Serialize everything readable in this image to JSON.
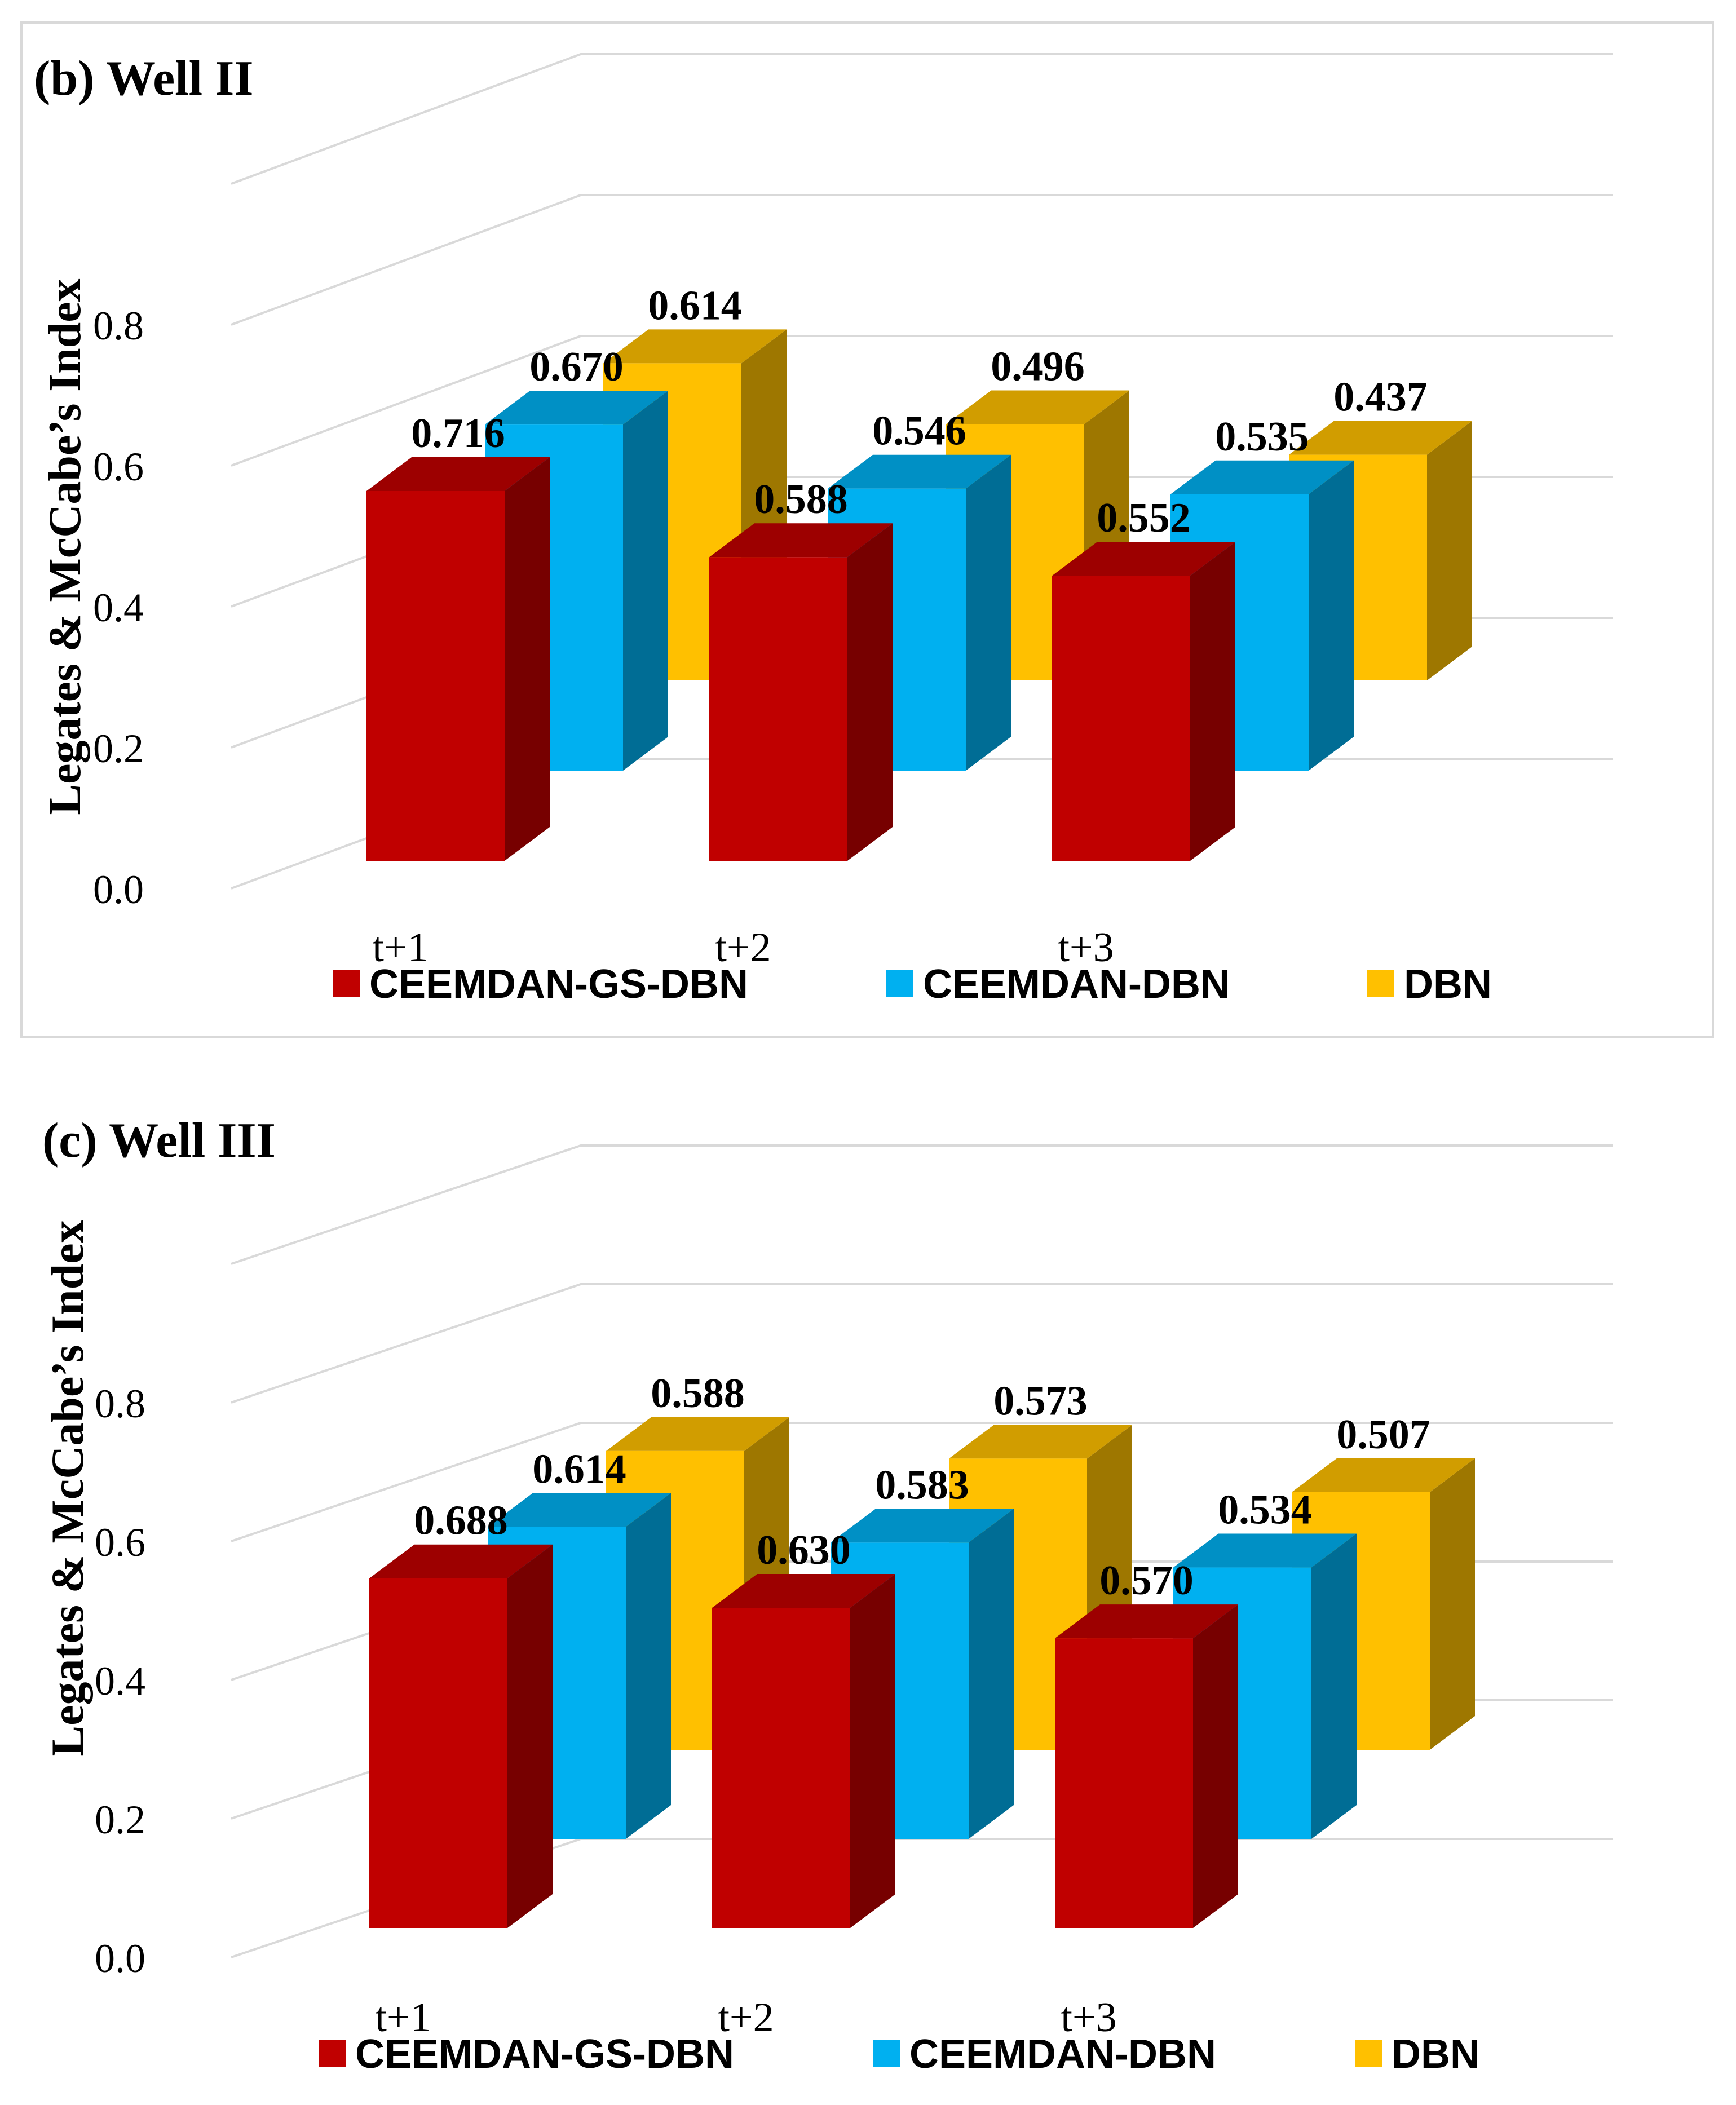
{
  "chart_data": [
    {
      "type": "bar",
      "title": "(b) Well  II",
      "ylabel": "Legates & McCabe’s Index",
      "xlabel": "",
      "ylim": [
        0,
        1.0
      ],
      "yticks": [
        "0.0",
        "0.2",
        "0.4",
        "0.6",
        "0.8"
      ],
      "grid": true,
      "legend_position": "bottom",
      "categories": [
        "t+1",
        "t+2",
        "t+3"
      ],
      "series": [
        {
          "name": "CEEMDAN-GS-DBN",
          "values": [
            0.716,
            0.588,
            0.552
          ],
          "labels": [
            "0.716",
            "0.588",
            "0.552"
          ],
          "color": "#c00000"
        },
        {
          "name": "CEEMDAN-DBN",
          "values": [
            0.67,
            0.546,
            0.535
          ],
          "labels": [
            "0.670",
            "0.546",
            "0.535"
          ],
          "color": "#00b0f0"
        },
        {
          "name": "DBN",
          "values": [
            0.614,
            0.496,
            0.437
          ],
          "labels": [
            "0.614",
            "0.496",
            "0.437"
          ],
          "color": "#ffc000"
        }
      ]
    },
    {
      "type": "bar",
      "title": "(c) Well III",
      "ylabel": "Legates & McCabe’s Index",
      "xlabel": "",
      "ylim": [
        0,
        1.0
      ],
      "yticks": [
        "0.0",
        "0.2",
        "0.4",
        "0.6",
        "0.8"
      ],
      "grid": true,
      "legend_position": "bottom",
      "categories": [
        "t+1",
        "t+2",
        "t+3"
      ],
      "series": [
        {
          "name": "CEEMDAN-GS-DBN",
          "values": [
            0.688,
            0.63,
            0.57
          ],
          "labels": [
            "0.688",
            "0.630",
            "0.570"
          ],
          "color": "#c00000"
        },
        {
          "name": "CEEMDAN-DBN",
          "values": [
            0.614,
            0.583,
            0.534
          ],
          "labels": [
            "0.614",
            "0.583",
            "0.534"
          ],
          "color": "#00b0f0"
        },
        {
          "name": "DBN",
          "values": [
            0.588,
            0.573,
            0.507
          ],
          "labels": [
            "0.588",
            "0.573",
            "0.507"
          ],
          "color": "#ffc000"
        }
      ]
    }
  ]
}
